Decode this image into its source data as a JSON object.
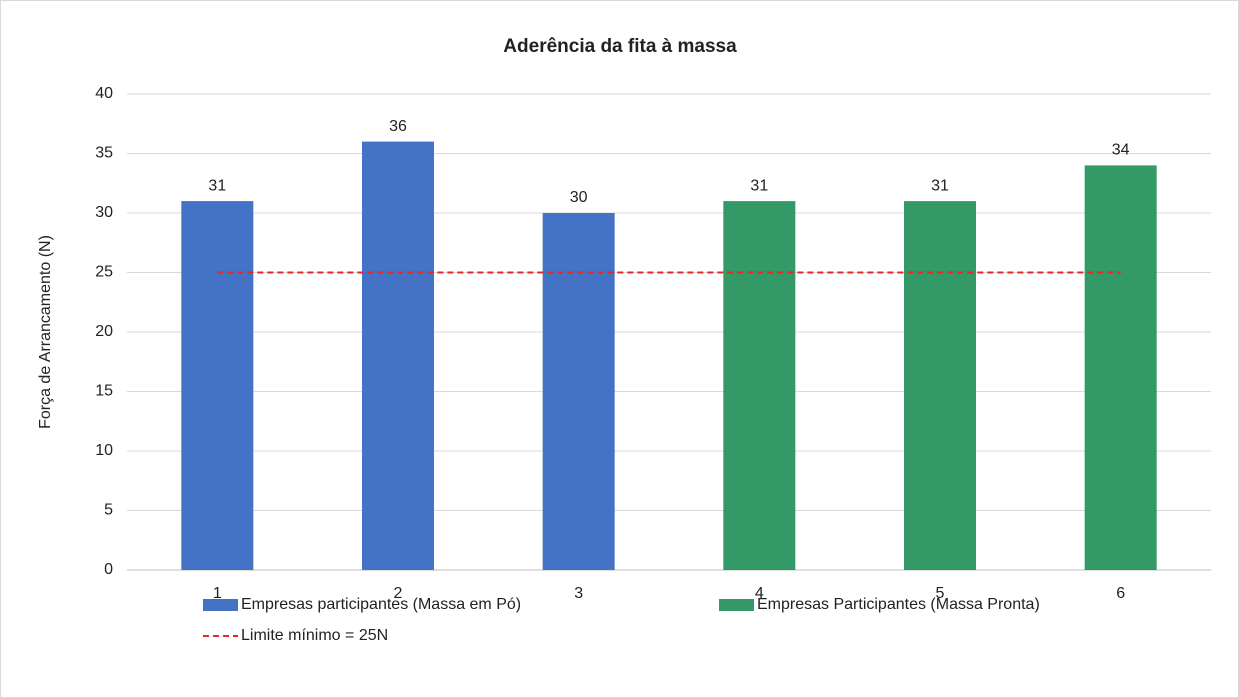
{
  "chart_data": {
    "type": "bar",
    "title": "Aderência da fita à massa",
    "y_label": "Força de Arrancamento (N)",
    "categories": [
      "1",
      "2",
      "3",
      "4",
      "5",
      "6"
    ],
    "series": [
      {
        "name": "Empresas participantes (Massa em Pó)",
        "color": "#4472c4",
        "values": [
          31,
          36,
          30,
          null,
          null,
          null
        ]
      },
      {
        "name": "Empresas Participantes (Massa Pronta)",
        "color": "#339966",
        "values": [
          null,
          null,
          null,
          31,
          31,
          34
        ]
      },
      {
        "name": "Limite mínimo = 25N",
        "color": "#e8262a",
        "type": "line",
        "values": [
          25,
          25,
          25,
          25,
          25,
          25
        ]
      }
    ],
    "ylim": [
      0,
      40
    ],
    "yticks": [
      0,
      5,
      10,
      15,
      20,
      25,
      30,
      35,
      40
    ],
    "grid": true,
    "legend": "bottom"
  }
}
